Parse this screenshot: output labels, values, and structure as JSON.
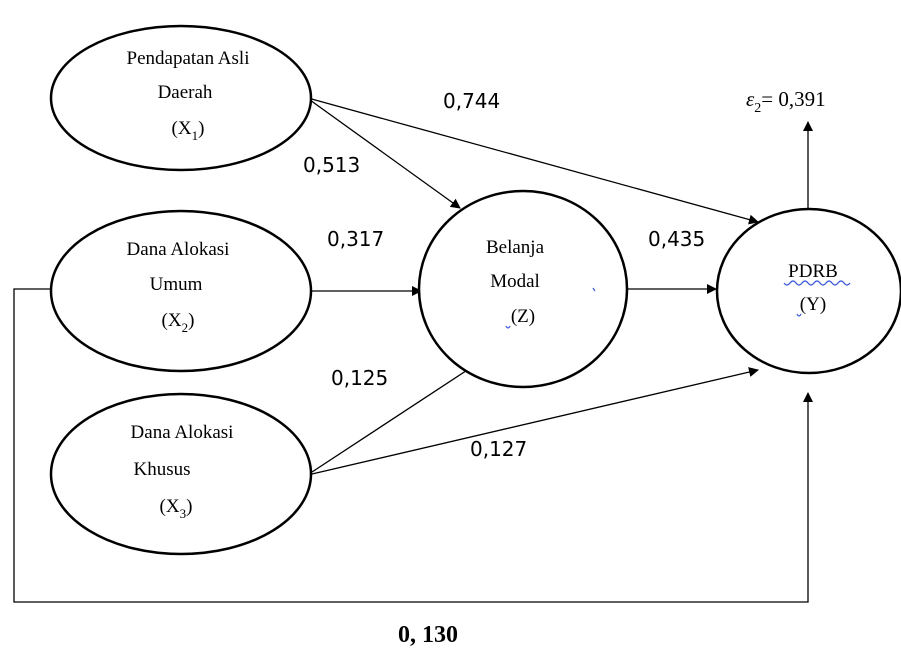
{
  "nodes": {
    "x1": {
      "line1": "Pendapatan Asli",
      "line2": "Daerah",
      "symbol": "X",
      "subscript": "1"
    },
    "x2": {
      "line1": "Dana Alokasi",
      "line2": "Umum",
      "symbol": "X",
      "subscript": "2"
    },
    "x3": {
      "line1": "Dana Alokasi",
      "line2": "Khusus",
      "symbol": "X",
      "subscript": "3"
    },
    "z": {
      "line1": "Belanja",
      "line2": "Modal",
      "line3": "(Z)"
    },
    "y": {
      "line1": "PDRB",
      "line2": "(Y)"
    }
  },
  "error_term": {
    "symbol": "ε",
    "subscript": "2",
    "value": "= 0,391"
  },
  "coefficients": {
    "x1_y": "0,744",
    "x1_z": "0,513",
    "x2_z": "0,317",
    "z_y": "0,435",
    "x3_z": "0,125",
    "x3_y": "0,127",
    "x2_y": "0, 130"
  }
}
